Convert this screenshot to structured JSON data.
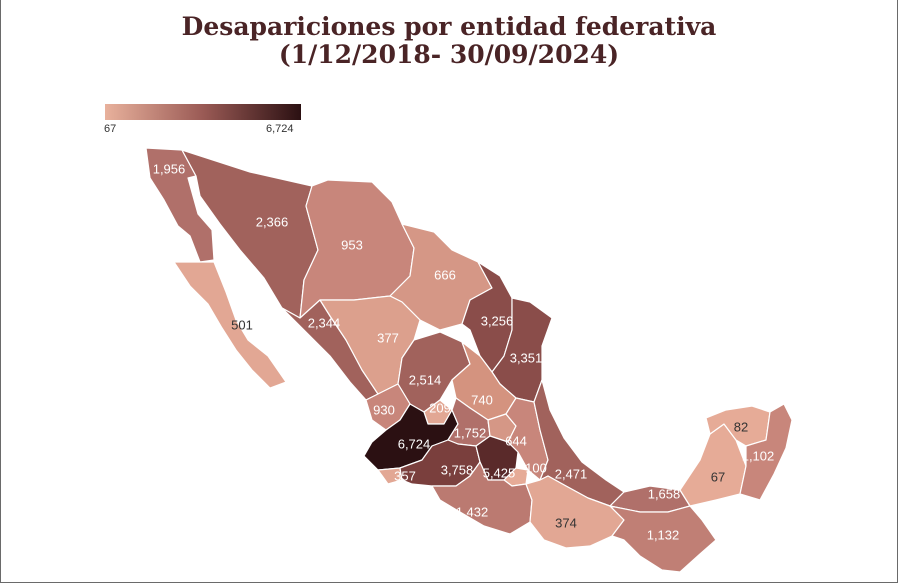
{
  "title_line1": "Desapariciones por entidad federativa",
  "title_line2": "(1/12/2018- 30/09/2024)",
  "legend": {
    "min": "67",
    "max": "6,724",
    "color_low": "#e8b19c",
    "color_high": "#2b1012"
  },
  "values": {
    "baja_california": "1,956",
    "sonora": "2,366",
    "chihuahua": "953",
    "coahuila": "666",
    "baja_california_sur": "501",
    "sinaloa": "2,344",
    "durango": "377",
    "nuevo_leon": "3,256",
    "tamaulipas": "3,351",
    "zacatecas": "2,514",
    "nayarit": "930",
    "aguascalientes": "209",
    "san_luis_potosi": "740",
    "jalisco": "6,724",
    "guanajuato": "1,752",
    "queretaro": "644",
    "colima": "357",
    "michoacan": "3,758",
    "estado_de_mexico": "5,425",
    "morelos": "100",
    "veracruz": "2,471",
    "guerrero": "1,432",
    "oaxaca": "374",
    "tabasco": "1,658",
    "chiapas": "1,132",
    "campeche": "67",
    "yucatan": "82",
    "quintana_roo": "1,102"
  }
}
